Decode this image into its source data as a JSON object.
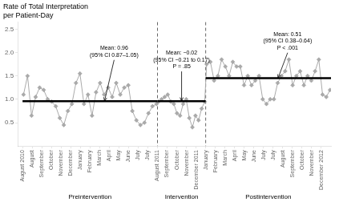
{
  "chart_data": {
    "type": "line",
    "title": "Rate of Total Interpretation\nper Patient-Day",
    "xlim": [
      -0.5,
      32
    ],
    "xticks": [
      {
        "value": 0,
        "label": "August 2010"
      },
      {
        "value": 1,
        "label": "August"
      },
      {
        "value": 2,
        "label": "September"
      },
      {
        "value": 3,
        "label": "October"
      },
      {
        "value": 4,
        "label": "November"
      },
      {
        "value": 5,
        "label": "December"
      },
      {
        "value": 6,
        "label": "January"
      },
      {
        "value": 7,
        "label": "February"
      },
      {
        "value": 8,
        "label": "March"
      },
      {
        "value": 9,
        "label": "April"
      },
      {
        "value": 10,
        "label": "May"
      },
      {
        "value": 11,
        "label": "June"
      },
      {
        "value": 12,
        "label": "July"
      },
      {
        "value": 13,
        "label": "July"
      },
      {
        "value": 14,
        "label": "August 2011"
      },
      {
        "value": 15,
        "label": "September"
      },
      {
        "value": 16,
        "label": "October"
      },
      {
        "value": 17,
        "label": "November"
      },
      {
        "value": 18,
        "label": "December 2011"
      },
      {
        "value": 19,
        "label": "January"
      },
      {
        "value": 20,
        "label": "February"
      },
      {
        "value": 21,
        "label": "March"
      },
      {
        "value": 22,
        "label": "April"
      },
      {
        "value": 23,
        "label": "May"
      },
      {
        "value": 24,
        "label": "June"
      },
      {
        "value": 25,
        "label": "July"
      },
      {
        "value": 26,
        "label": "July"
      },
      {
        "value": 27,
        "label": "August"
      },
      {
        "value": 28,
        "label": "September"
      },
      {
        "value": 29,
        "label": "October"
      },
      {
        "value": 30,
        "label": "November"
      },
      {
        "value": 31,
        "label": "December 2012"
      }
    ],
    "ylim": [
      0,
      2.65
    ],
    "yticks": [
      0.5,
      {
        "value": 1.0,
        "label": "1.0"
      },
      1.5,
      {
        "value": 2.0,
        "label": "2.0"
      },
      2.5
    ],
    "grid": false,
    "series": [
      {
        "color": "#aaaaaa",
        "marker": "diamond",
        "x": [
          0.1,
          0.518182,
          0.936364,
          1.354545,
          1.772727,
          2.190909,
          2.609091,
          3.027273,
          3.445455,
          3.863636,
          4.281818,
          4.7,
          5.118182,
          5.536364,
          5.954545,
          6.372727,
          6.790909,
          7.209091,
          7.627273,
          8.045455,
          8.463636,
          8.881818,
          9.3,
          9.718182,
          10.136364,
          10.554545,
          10.972727,
          11.390909,
          11.809091,
          12.227273,
          12.645455,
          13.063636,
          13.481818,
          13.9,
          14.1,
          14.42,
          14.74,
          15.06,
          15.38,
          15.7,
          16.02,
          16.34,
          16.66,
          16.98,
          17.3,
          17.62,
          17.94,
          18.26,
          18.58,
          18.9,
          19.1,
          19.487879,
          19.875758,
          20.263636,
          20.651515,
          21.039394,
          21.427273,
          21.815152,
          22.20303,
          22.590909,
          22.978788,
          23.366667,
          23.754545,
          24.142424,
          24.530303,
          24.918182,
          25.306061,
          25.693939,
          26.081818,
          26.469697,
          26.857576,
          27.245455,
          27.633333,
          28.021212,
          28.409091,
          28.79697,
          29.184848,
          29.572727,
          29.960606,
          30.348485,
          30.736364,
          31.124242,
          31.512121,
          31.9
        ],
        "values": [
          1.1,
          1.5,
          0.65,
          1.05,
          1.25,
          1.2,
          1.0,
          0.95,
          0.85,
          0.6,
          0.45,
          0.75,
          0.9,
          1.35,
          1.55,
          0.9,
          1.1,
          0.65,
          1.15,
          1.35,
          1.1,
          1.25,
          1.05,
          1.35,
          1.1,
          1.25,
          1.3,
          0.75,
          0.55,
          0.45,
          0.5,
          0.7,
          0.85,
          0.9,
          0.95,
          1.0,
          1.05,
          1.1,
          0.95,
          0.9,
          0.7,
          0.65,
          0.9,
          1.0,
          0.6,
          0.4,
          0.65,
          0.55,
          0.8,
          0.95,
          1.75,
          1.8,
          1.4,
          1.5,
          1.85,
          1.7,
          1.5,
          1.8,
          1.7,
          1.7,
          1.3,
          1.5,
          1.3,
          1.4,
          1.5,
          1.0,
          0.9,
          1.0,
          1.0,
          1.35,
          1.5,
          1.6,
          1.85,
          1.3,
          1.5,
          1.6,
          1.3,
          1.5,
          1.4,
          1.6,
          1.85,
          1.1,
          1.05,
          1.2
        ]
      }
    ],
    "mean_lines": {
      "color": "#000000",
      "lines": [
        {
          "x": [
            0,
            14
          ],
          "value": 0.96
        },
        {
          "x": [
            14,
            19
          ],
          "value": 0.96
        },
        {
          "x": [
            19,
            32
          ],
          "value": 1.45
        }
      ]
    },
    "vertical_lines": {
      "x": [
        14.0,
        19.0
      ],
      "color": "#666666",
      "line_style": "dashed"
    },
    "annotations": [
      {
        "text": "Mean: 0.96\n(95% CI 0.87–1.05)",
        "x": 8.5,
        "y": 0.96,
        "text_x": 9.5,
        "text_y": 2.15
      },
      {
        "text": "Mean: −0.02\n(95% CI −0.21 to 0.17)\nP = .85",
        "x": 16.5,
        "y": 0.96,
        "text_x": 16.5,
        "text_y": 2.05
      },
      {
        "text": "Mean: 0.51\n(95% CI 0.38–0.64)\nP < .001",
        "x": 26.5,
        "y": 1.45,
        "text_x": 27.5,
        "text_y": 2.45
      }
    ],
    "section_labels": [
      {
        "text": "Preintervention",
        "x": 7.0
      },
      {
        "text": "Intervention",
        "x": 16.5
      },
      {
        "text": "Postintervention",
        "x": 25.5
      }
    ]
  }
}
